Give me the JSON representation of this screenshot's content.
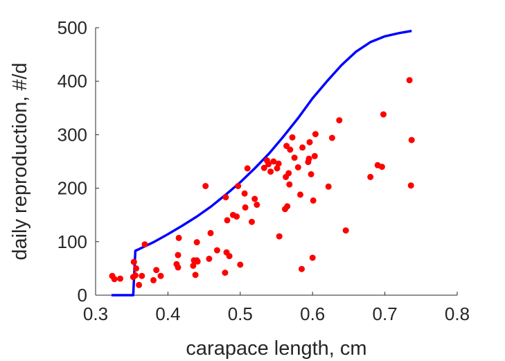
{
  "chart_data": {
    "type": "scatter",
    "xlabel": "carapace length, cm",
    "ylabel": "daily reproduction, #/d",
    "xlim": [
      0.3,
      0.8
    ],
    "ylim": [
      0,
      500
    ],
    "xticks": [
      0.3,
      0.4,
      0.5,
      0.6,
      0.7,
      0.8
    ],
    "xtick_labels": [
      "0.3",
      "0.4",
      "0.5",
      "0.6",
      "0.7",
      "0.8"
    ],
    "yticks": [
      0,
      100,
      200,
      300,
      400,
      500
    ],
    "ytick_labels": [
      "0",
      "100",
      "200",
      "300",
      "400",
      "500"
    ],
    "grid": false,
    "box": false,
    "series": [
      {
        "type": "scatter",
        "color": "#ff0000",
        "points": [
          [
            0.323,
            36
          ],
          [
            0.326,
            30
          ],
          [
            0.334,
            31
          ],
          [
            0.352,
            34
          ],
          [
            0.353,
            62
          ],
          [
            0.355,
            37
          ],
          [
            0.356,
            50
          ],
          [
            0.36,
            19
          ],
          [
            0.364,
            36
          ],
          [
            0.368,
            95
          ],
          [
            0.38,
            28
          ],
          [
            0.384,
            47
          ],
          [
            0.39,
            36
          ],
          [
            0.412,
            58
          ],
          [
            0.414,
            52
          ],
          [
            0.414,
            75
          ],
          [
            0.415,
            107
          ],
          [
            0.435,
            55
          ],
          [
            0.436,
            65
          ],
          [
            0.438,
            38
          ],
          [
            0.44,
            99
          ],
          [
            0.44,
            65
          ],
          [
            0.441,
            63
          ],
          [
            0.452,
            204
          ],
          [
            0.457,
            68
          ],
          [
            0.459,
            116
          ],
          [
            0.468,
            84
          ],
          [
            0.479,
            42
          ],
          [
            0.48,
            183
          ],
          [
            0.481,
            80
          ],
          [
            0.482,
            140
          ],
          [
            0.485,
            73
          ],
          [
            0.49,
            150
          ],
          [
            0.495,
            147
          ],
          [
            0.497,
            204
          ],
          [
            0.5,
            57
          ],
          [
            0.506,
            190
          ],
          [
            0.507,
            164
          ],
          [
            0.51,
            237
          ],
          [
            0.516,
            137
          ],
          [
            0.52,
            180
          ],
          [
            0.523,
            169
          ],
          [
            0.533,
            238
          ],
          [
            0.537,
            252
          ],
          [
            0.539,
            245
          ],
          [
            0.542,
            231
          ],
          [
            0.546,
            250
          ],
          [
            0.551,
            237
          ],
          [
            0.553,
            246
          ],
          [
            0.554,
            110
          ],
          [
            0.562,
            161
          ],
          [
            0.563,
            221
          ],
          [
            0.564,
            279
          ],
          [
            0.565,
            166
          ],
          [
            0.567,
            228
          ],
          [
            0.568,
            207
          ],
          [
            0.569,
            272
          ],
          [
            0.572,
            295
          ],
          [
            0.575,
            257
          ],
          [
            0.58,
            239
          ],
          [
            0.583,
            188
          ],
          [
            0.585,
            49
          ],
          [
            0.586,
            276
          ],
          [
            0.594,
            249
          ],
          [
            0.595,
            255
          ],
          [
            0.596,
            286
          ],
          [
            0.598,
            226
          ],
          [
            0.6,
            70
          ],
          [
            0.601,
            177
          ],
          [
            0.603,
            260
          ],
          [
            0.604,
            301
          ],
          [
            0.622,
            203
          ],
          [
            0.627,
            294
          ],
          [
            0.637,
            327
          ],
          [
            0.646,
            121
          ],
          [
            0.68,
            221
          ],
          [
            0.69,
            243
          ],
          [
            0.696,
            240
          ],
          [
            0.698,
            338
          ],
          [
            0.734,
            402
          ],
          [
            0.736,
            205
          ],
          [
            0.737,
            290
          ]
        ]
      },
      {
        "type": "line",
        "color": "#0000ff",
        "points": [
          [
            0.322,
            0
          ],
          [
            0.325,
            0
          ],
          [
            0.35,
            0
          ],
          [
            0.352,
            0
          ],
          [
            0.355,
            83
          ],
          [
            0.36,
            86
          ],
          [
            0.38,
            99
          ],
          [
            0.4,
            114
          ],
          [
            0.42,
            130
          ],
          [
            0.44,
            147
          ],
          [
            0.46,
            166
          ],
          [
            0.48,
            188
          ],
          [
            0.5,
            211
          ],
          [
            0.52,
            237
          ],
          [
            0.54,
            265
          ],
          [
            0.56,
            297
          ],
          [
            0.58,
            331
          ],
          [
            0.6,
            368
          ],
          [
            0.62,
            400
          ],
          [
            0.64,
            430
          ],
          [
            0.66,
            455
          ],
          [
            0.68,
            473
          ],
          [
            0.7,
            484
          ],
          [
            0.72,
            490
          ],
          [
            0.737,
            494
          ]
        ]
      }
    ]
  }
}
